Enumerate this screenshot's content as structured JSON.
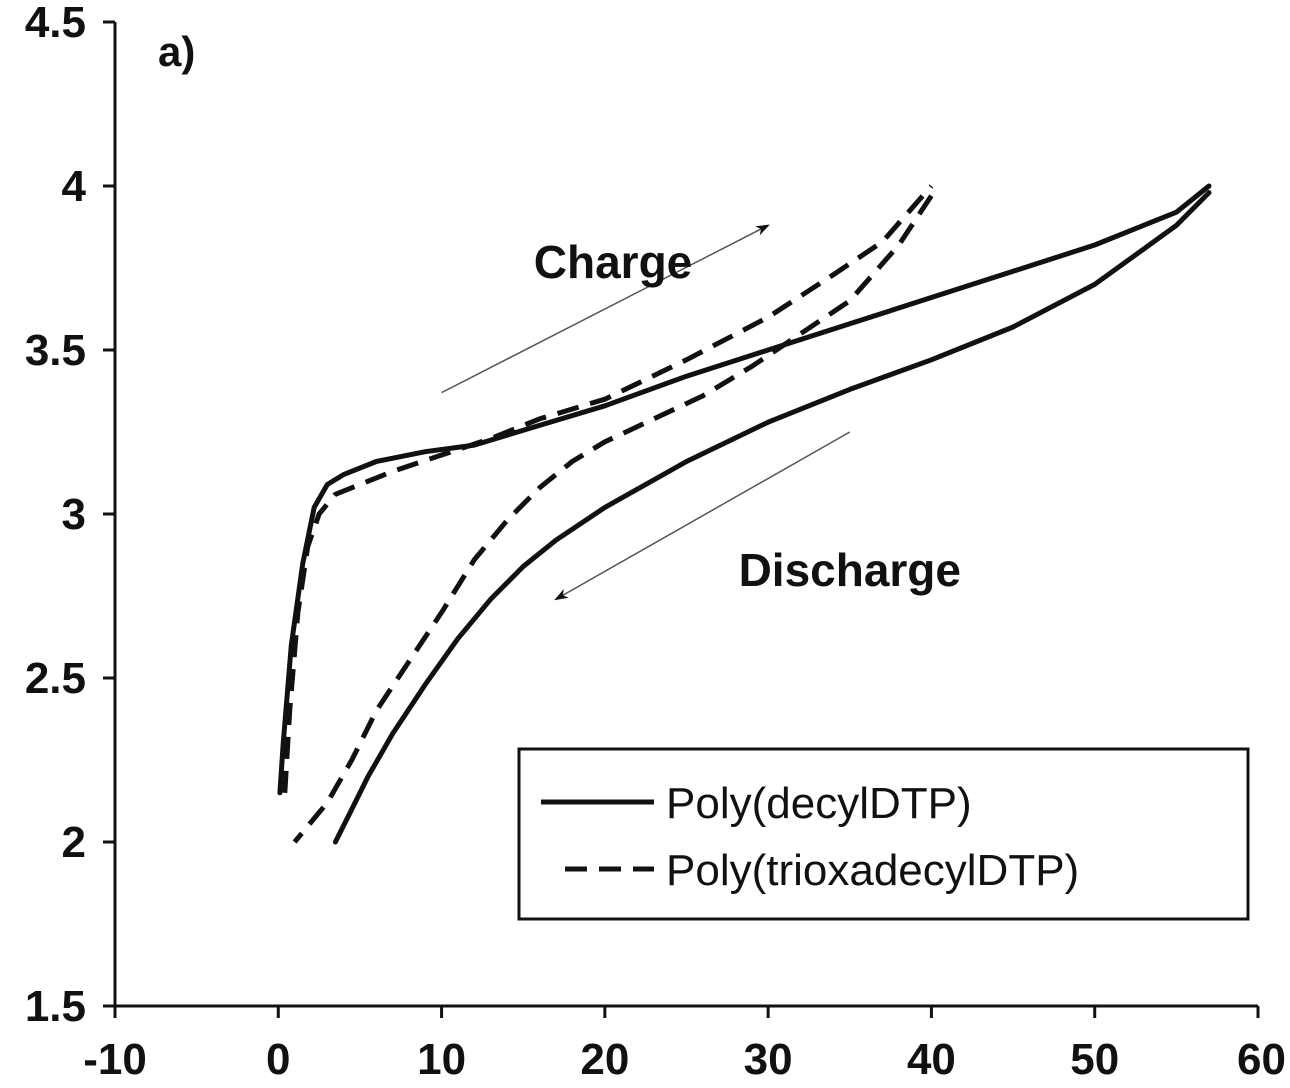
{
  "chart_data": {
    "type": "line",
    "title": "",
    "panel_label": "a)",
    "xlabel": "",
    "ylabel": "",
    "xlim": [
      -10,
      60
    ],
    "ylim": [
      1.5,
      4.5
    ],
    "x_ticks": [
      -10,
      0,
      10,
      20,
      30,
      40,
      50,
      60
    ],
    "y_ticks": [
      1.5,
      2,
      2.5,
      3,
      3.5,
      4,
      4.5
    ],
    "x_tick_labels": [
      "-10",
      "0",
      "10",
      "20",
      "30",
      "40",
      "50",
      "60"
    ],
    "y_tick_labels": [
      "1.5",
      "2",
      "2.5",
      "3",
      "3.5",
      "4",
      "4.5"
    ],
    "grid": false,
    "legend_position": "bottom-right",
    "series": [
      {
        "name": "Poly(decylDTP)",
        "style": "solid",
        "color": "#111111",
        "charge": {
          "x": [
            0.1,
            0.3,
            0.8,
            1.5,
            2.2,
            3.0,
            4.0,
            6.0,
            9.0,
            12.0,
            16.0,
            20.0,
            25.0,
            30.0,
            35.0,
            40.0,
            45.0,
            50.0,
            55.0,
            57.0
          ],
          "y": [
            2.15,
            2.3,
            2.6,
            2.85,
            3.02,
            3.09,
            3.12,
            3.16,
            3.19,
            3.21,
            3.27,
            3.33,
            3.42,
            3.5,
            3.58,
            3.66,
            3.74,
            3.82,
            3.92,
            4.0
          ]
        },
        "discharge": {
          "x": [
            57.0,
            55.0,
            50.0,
            45.0,
            40.0,
            35.0,
            30.0,
            25.0,
            20.0,
            17.0,
            15.0,
            13.0,
            11.0,
            9.0,
            7.0,
            5.5,
            4.5,
            3.5
          ],
          "y": [
            3.98,
            3.88,
            3.7,
            3.57,
            3.47,
            3.38,
            3.28,
            3.16,
            3.02,
            2.92,
            2.84,
            2.74,
            2.62,
            2.48,
            2.33,
            2.2,
            2.1,
            2.0
          ]
        }
      },
      {
        "name": "Poly(trioxadecylDTP)",
        "style": "dashed",
        "color": "#111111",
        "charge": {
          "x": [
            0.4,
            0.7,
            1.2,
            1.8,
            2.5,
            3.5,
            5.0,
            7.0,
            10.0,
            13.0,
            16.0,
            20.0,
            25.0,
            30.0,
            34.0,
            37.0,
            40.0
          ],
          "y": [
            2.15,
            2.4,
            2.7,
            2.9,
            3.0,
            3.06,
            3.09,
            3.13,
            3.18,
            3.23,
            3.29,
            3.35,
            3.47,
            3.6,
            3.73,
            3.83,
            4.0
          ]
        },
        "discharge": {
          "x": [
            40.0,
            38.0,
            35.0,
            32.0,
            29.0,
            26.0,
            23.0,
            20.0,
            18.0,
            16.0,
            14.0,
            12.0,
            10.0,
            8.0,
            6.0,
            4.5,
            3.0,
            1.0
          ],
          "y": [
            3.97,
            3.82,
            3.65,
            3.55,
            3.45,
            3.36,
            3.29,
            3.22,
            3.16,
            3.08,
            2.98,
            2.86,
            2.7,
            2.55,
            2.4,
            2.25,
            2.12,
            2.0
          ]
        }
      }
    ],
    "annotations": [
      {
        "text": "Charge",
        "x": 20.5,
        "y": 3.72
      },
      {
        "text": "Discharge",
        "x": 35,
        "y": 2.78
      }
    ],
    "arrows": [
      {
        "from": [
          10,
          3.37
        ],
        "to": [
          30,
          3.88
        ]
      },
      {
        "from": [
          35,
          3.25
        ],
        "to": [
          17,
          2.74
        ]
      }
    ]
  }
}
